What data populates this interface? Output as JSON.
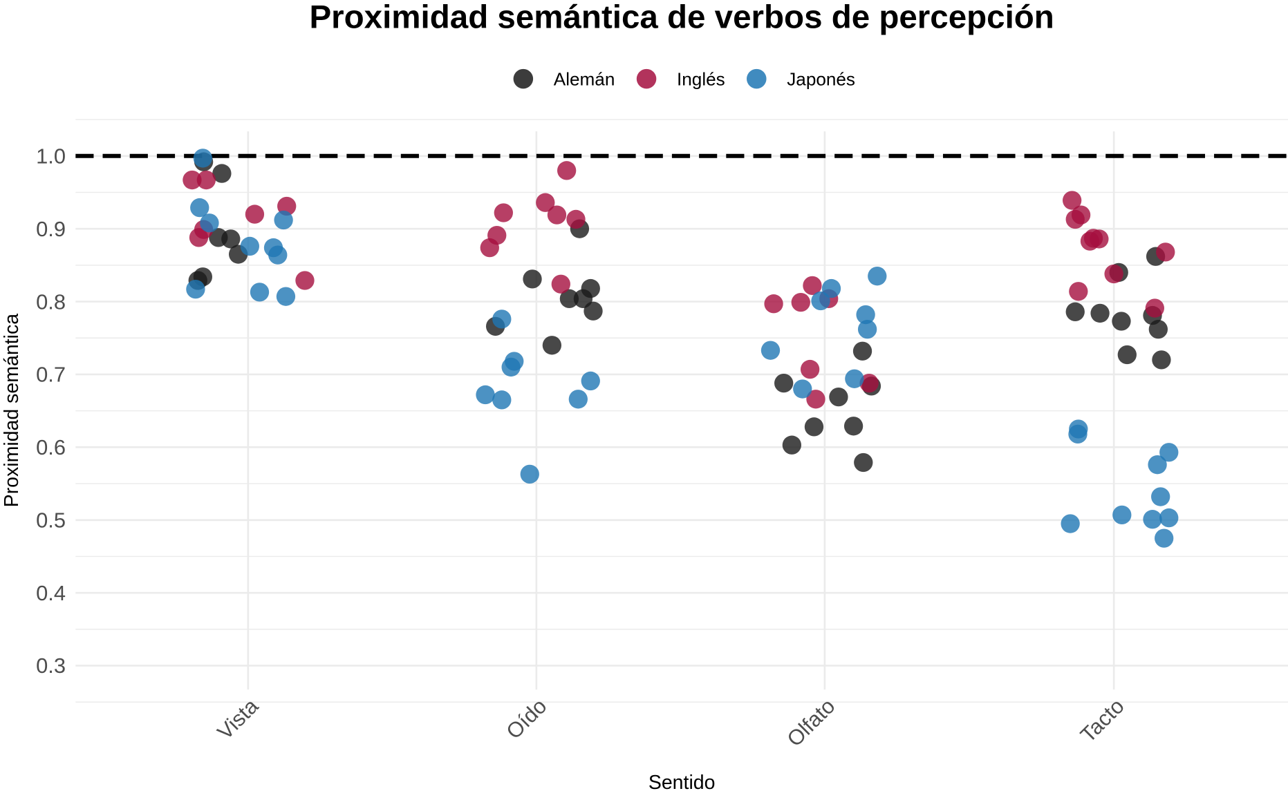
{
  "chart_data": {
    "type": "scatter",
    "title": "Proximidad semántica de verbos de percepción",
    "xlabel": "Sentido",
    "ylabel": "Proximidad semántica",
    "categories": [
      "Vista",
      "Oído",
      "Olfato",
      "Tacto"
    ],
    "ylim": [
      0.27,
      1.03
    ],
    "yticks": [
      "0.3",
      "0.4",
      "0.5",
      "0.6",
      "0.7",
      "0.8",
      "0.9",
      "1.0"
    ],
    "reference_line": {
      "y": 1.0,
      "style": "dashed",
      "color": "#000000"
    },
    "grid": true,
    "legend_position": "top",
    "series": [
      {
        "name": "Alemán",
        "color": "#1a1a1a",
        "points": [
          {
            "cat": "Vista",
            "jitter": -0.154,
            "y": 0.992
          },
          {
            "cat": "Vista",
            "jitter": -0.091,
            "y": 0.976
          },
          {
            "cat": "Vista",
            "jitter": -0.103,
            "y": 0.888
          },
          {
            "cat": "Vista",
            "jitter": -0.06,
            "y": 0.886
          },
          {
            "cat": "Vista",
            "jitter": -0.034,
            "y": 0.865
          },
          {
            "cat": "Vista",
            "jitter": -0.157,
            "y": 0.834
          },
          {
            "cat": "Vista",
            "jitter": -0.174,
            "y": 0.829
          },
          {
            "cat": "Oído",
            "jitter": 0.15,
            "y": 0.9
          },
          {
            "cat": "Oído",
            "jitter": -0.014,
            "y": 0.831
          },
          {
            "cat": "Oído",
            "jitter": -0.142,
            "y": 0.766
          },
          {
            "cat": "Oído",
            "jitter": 0.054,
            "y": 0.74
          },
          {
            "cat": "Oído",
            "jitter": 0.114,
            "y": 0.804
          },
          {
            "cat": "Oído",
            "jitter": 0.162,
            "y": 0.804
          },
          {
            "cat": "Oído",
            "jitter": 0.188,
            "y": 0.818
          },
          {
            "cat": "Oído",
            "jitter": 0.197,
            "y": 0.787
          },
          {
            "cat": "Olfato",
            "jitter": 0.131,
            "y": 0.732
          },
          {
            "cat": "Olfato",
            "jitter": -0.142,
            "y": 0.688
          },
          {
            "cat": "Olfato",
            "jitter": 0.162,
            "y": 0.684
          },
          {
            "cat": "Olfato",
            "jitter": 0.048,
            "y": 0.669
          },
          {
            "cat": "Olfato",
            "jitter": -0.037,
            "y": 0.628
          },
          {
            "cat": "Olfato",
            "jitter": 0.1,
            "y": 0.629
          },
          {
            "cat": "Olfato",
            "jitter": -0.114,
            "y": 0.603
          },
          {
            "cat": "Olfato",
            "jitter": 0.134,
            "y": 0.579
          },
          {
            "cat": "Tacto",
            "jitter": 0.145,
            "y": 0.862
          },
          {
            "cat": "Tacto",
            "jitter": 0.017,
            "y": 0.84
          },
          {
            "cat": "Tacto",
            "jitter": -0.134,
            "y": 0.786
          },
          {
            "cat": "Tacto",
            "jitter": -0.048,
            "y": 0.784
          },
          {
            "cat": "Tacto",
            "jitter": 0.026,
            "y": 0.773
          },
          {
            "cat": "Tacto",
            "jitter": 0.134,
            "y": 0.781
          },
          {
            "cat": "Tacto",
            "jitter": 0.154,
            "y": 0.762
          },
          {
            "cat": "Tacto",
            "jitter": 0.046,
            "y": 0.727
          },
          {
            "cat": "Tacto",
            "jitter": 0.165,
            "y": 0.72
          }
        ]
      },
      {
        "name": "Inglés",
        "color": "#a50f3f",
        "points": [
          {
            "cat": "Vista",
            "jitter": -0.194,
            "y": 0.967
          },
          {
            "cat": "Vista",
            "jitter": -0.145,
            "y": 0.967
          },
          {
            "cat": "Vista",
            "jitter": 0.023,
            "y": 0.92
          },
          {
            "cat": "Vista",
            "jitter": 0.134,
            "y": 0.931
          },
          {
            "cat": "Vista",
            "jitter": -0.171,
            "y": 0.888
          },
          {
            "cat": "Vista",
            "jitter": -0.154,
            "y": 0.899
          },
          {
            "cat": "Vista",
            "jitter": 0.197,
            "y": 0.829
          },
          {
            "cat": "Oído",
            "jitter": 0.105,
            "y": 0.98
          },
          {
            "cat": "Oído",
            "jitter": 0.031,
            "y": 0.936
          },
          {
            "cat": "Oído",
            "jitter": -0.114,
            "y": 0.922
          },
          {
            "cat": "Oído",
            "jitter": 0.071,
            "y": 0.919
          },
          {
            "cat": "Oído",
            "jitter": 0.137,
            "y": 0.913
          },
          {
            "cat": "Oído",
            "jitter": -0.137,
            "y": 0.891
          },
          {
            "cat": "Oído",
            "jitter": -0.162,
            "y": 0.874
          },
          {
            "cat": "Oído",
            "jitter": 0.085,
            "y": 0.824
          },
          {
            "cat": "Olfato",
            "jitter": -0.177,
            "y": 0.797
          },
          {
            "cat": "Olfato",
            "jitter": -0.083,
            "y": 0.799
          },
          {
            "cat": "Olfato",
            "jitter": -0.043,
            "y": 0.822
          },
          {
            "cat": "Olfato",
            "jitter": 0.014,
            "y": 0.804
          },
          {
            "cat": "Olfato",
            "jitter": -0.051,
            "y": 0.707
          },
          {
            "cat": "Olfato",
            "jitter": 0.154,
            "y": 0.688
          },
          {
            "cat": "Olfato",
            "jitter": -0.031,
            "y": 0.666
          },
          {
            "cat": "Tacto",
            "jitter": -0.145,
            "y": 0.939
          },
          {
            "cat": "Tacto",
            "jitter": -0.114,
            "y": 0.919
          },
          {
            "cat": "Tacto",
            "jitter": -0.134,
            "y": 0.913
          },
          {
            "cat": "Tacto",
            "jitter": -0.071,
            "y": 0.887
          },
          {
            "cat": "Tacto",
            "jitter": -0.051,
            "y": 0.886
          },
          {
            "cat": "Tacto",
            "jitter": -0.083,
            "y": 0.883
          },
          {
            "cat": "Tacto",
            "jitter": 0.179,
            "y": 0.868
          },
          {
            "cat": "Tacto",
            "jitter": 0.0,
            "y": 0.838
          },
          {
            "cat": "Tacto",
            "jitter": -0.123,
            "y": 0.814
          },
          {
            "cat": "Tacto",
            "jitter": 0.142,
            "y": 0.791
          }
        ]
      },
      {
        "name": "Japonés",
        "color": "#1f77b4",
        "points": [
          {
            "cat": "Vista",
            "jitter": -0.157,
            "y": 0.997
          },
          {
            "cat": "Vista",
            "jitter": -0.168,
            "y": 0.929
          },
          {
            "cat": "Vista",
            "jitter": -0.134,
            "y": 0.908
          },
          {
            "cat": "Vista",
            "jitter": 0.123,
            "y": 0.912
          },
          {
            "cat": "Vista",
            "jitter": 0.006,
            "y": 0.876
          },
          {
            "cat": "Vista",
            "jitter": 0.088,
            "y": 0.874
          },
          {
            "cat": "Vista",
            "jitter": 0.103,
            "y": 0.864
          },
          {
            "cat": "Vista",
            "jitter": 0.04,
            "y": 0.813
          },
          {
            "cat": "Vista",
            "jitter": 0.131,
            "y": 0.807
          },
          {
            "cat": "Vista",
            "jitter": -0.182,
            "y": 0.817
          },
          {
            "cat": "Oído",
            "jitter": -0.12,
            "y": 0.776
          },
          {
            "cat": "Oído",
            "jitter": -0.077,
            "y": 0.718
          },
          {
            "cat": "Oído",
            "jitter": -0.088,
            "y": 0.71
          },
          {
            "cat": "Oído",
            "jitter": -0.177,
            "y": 0.672
          },
          {
            "cat": "Oído",
            "jitter": -0.12,
            "y": 0.665
          },
          {
            "cat": "Oído",
            "jitter": 0.188,
            "y": 0.691
          },
          {
            "cat": "Oído",
            "jitter": 0.145,
            "y": 0.666
          },
          {
            "cat": "Oído",
            "jitter": -0.023,
            "y": 0.563
          },
          {
            "cat": "Olfato",
            "jitter": 0.182,
            "y": 0.835
          },
          {
            "cat": "Olfato",
            "jitter": 0.023,
            "y": 0.818
          },
          {
            "cat": "Olfato",
            "jitter": -0.014,
            "y": 0.801
          },
          {
            "cat": "Olfato",
            "jitter": 0.142,
            "y": 0.782
          },
          {
            "cat": "Olfato",
            "jitter": 0.148,
            "y": 0.762
          },
          {
            "cat": "Olfato",
            "jitter": -0.188,
            "y": 0.733
          },
          {
            "cat": "Olfato",
            "jitter": 0.103,
            "y": 0.694
          },
          {
            "cat": "Olfato",
            "jitter": -0.077,
            "y": 0.68
          },
          {
            "cat": "Tacto",
            "jitter": -0.123,
            "y": 0.625
          },
          {
            "cat": "Tacto",
            "jitter": -0.125,
            "y": 0.618
          },
          {
            "cat": "Tacto",
            "jitter": 0.191,
            "y": 0.593
          },
          {
            "cat": "Tacto",
            "jitter": 0.151,
            "y": 0.576
          },
          {
            "cat": "Tacto",
            "jitter": 0.162,
            "y": 0.532
          },
          {
            "cat": "Tacto",
            "jitter": 0.028,
            "y": 0.507
          },
          {
            "cat": "Tacto",
            "jitter": 0.134,
            "y": 0.501
          },
          {
            "cat": "Tacto",
            "jitter": 0.191,
            "y": 0.503
          },
          {
            "cat": "Tacto",
            "jitter": -0.151,
            "y": 0.495
          },
          {
            "cat": "Tacto",
            "jitter": 0.174,
            "y": 0.475
          }
        ]
      }
    ]
  }
}
